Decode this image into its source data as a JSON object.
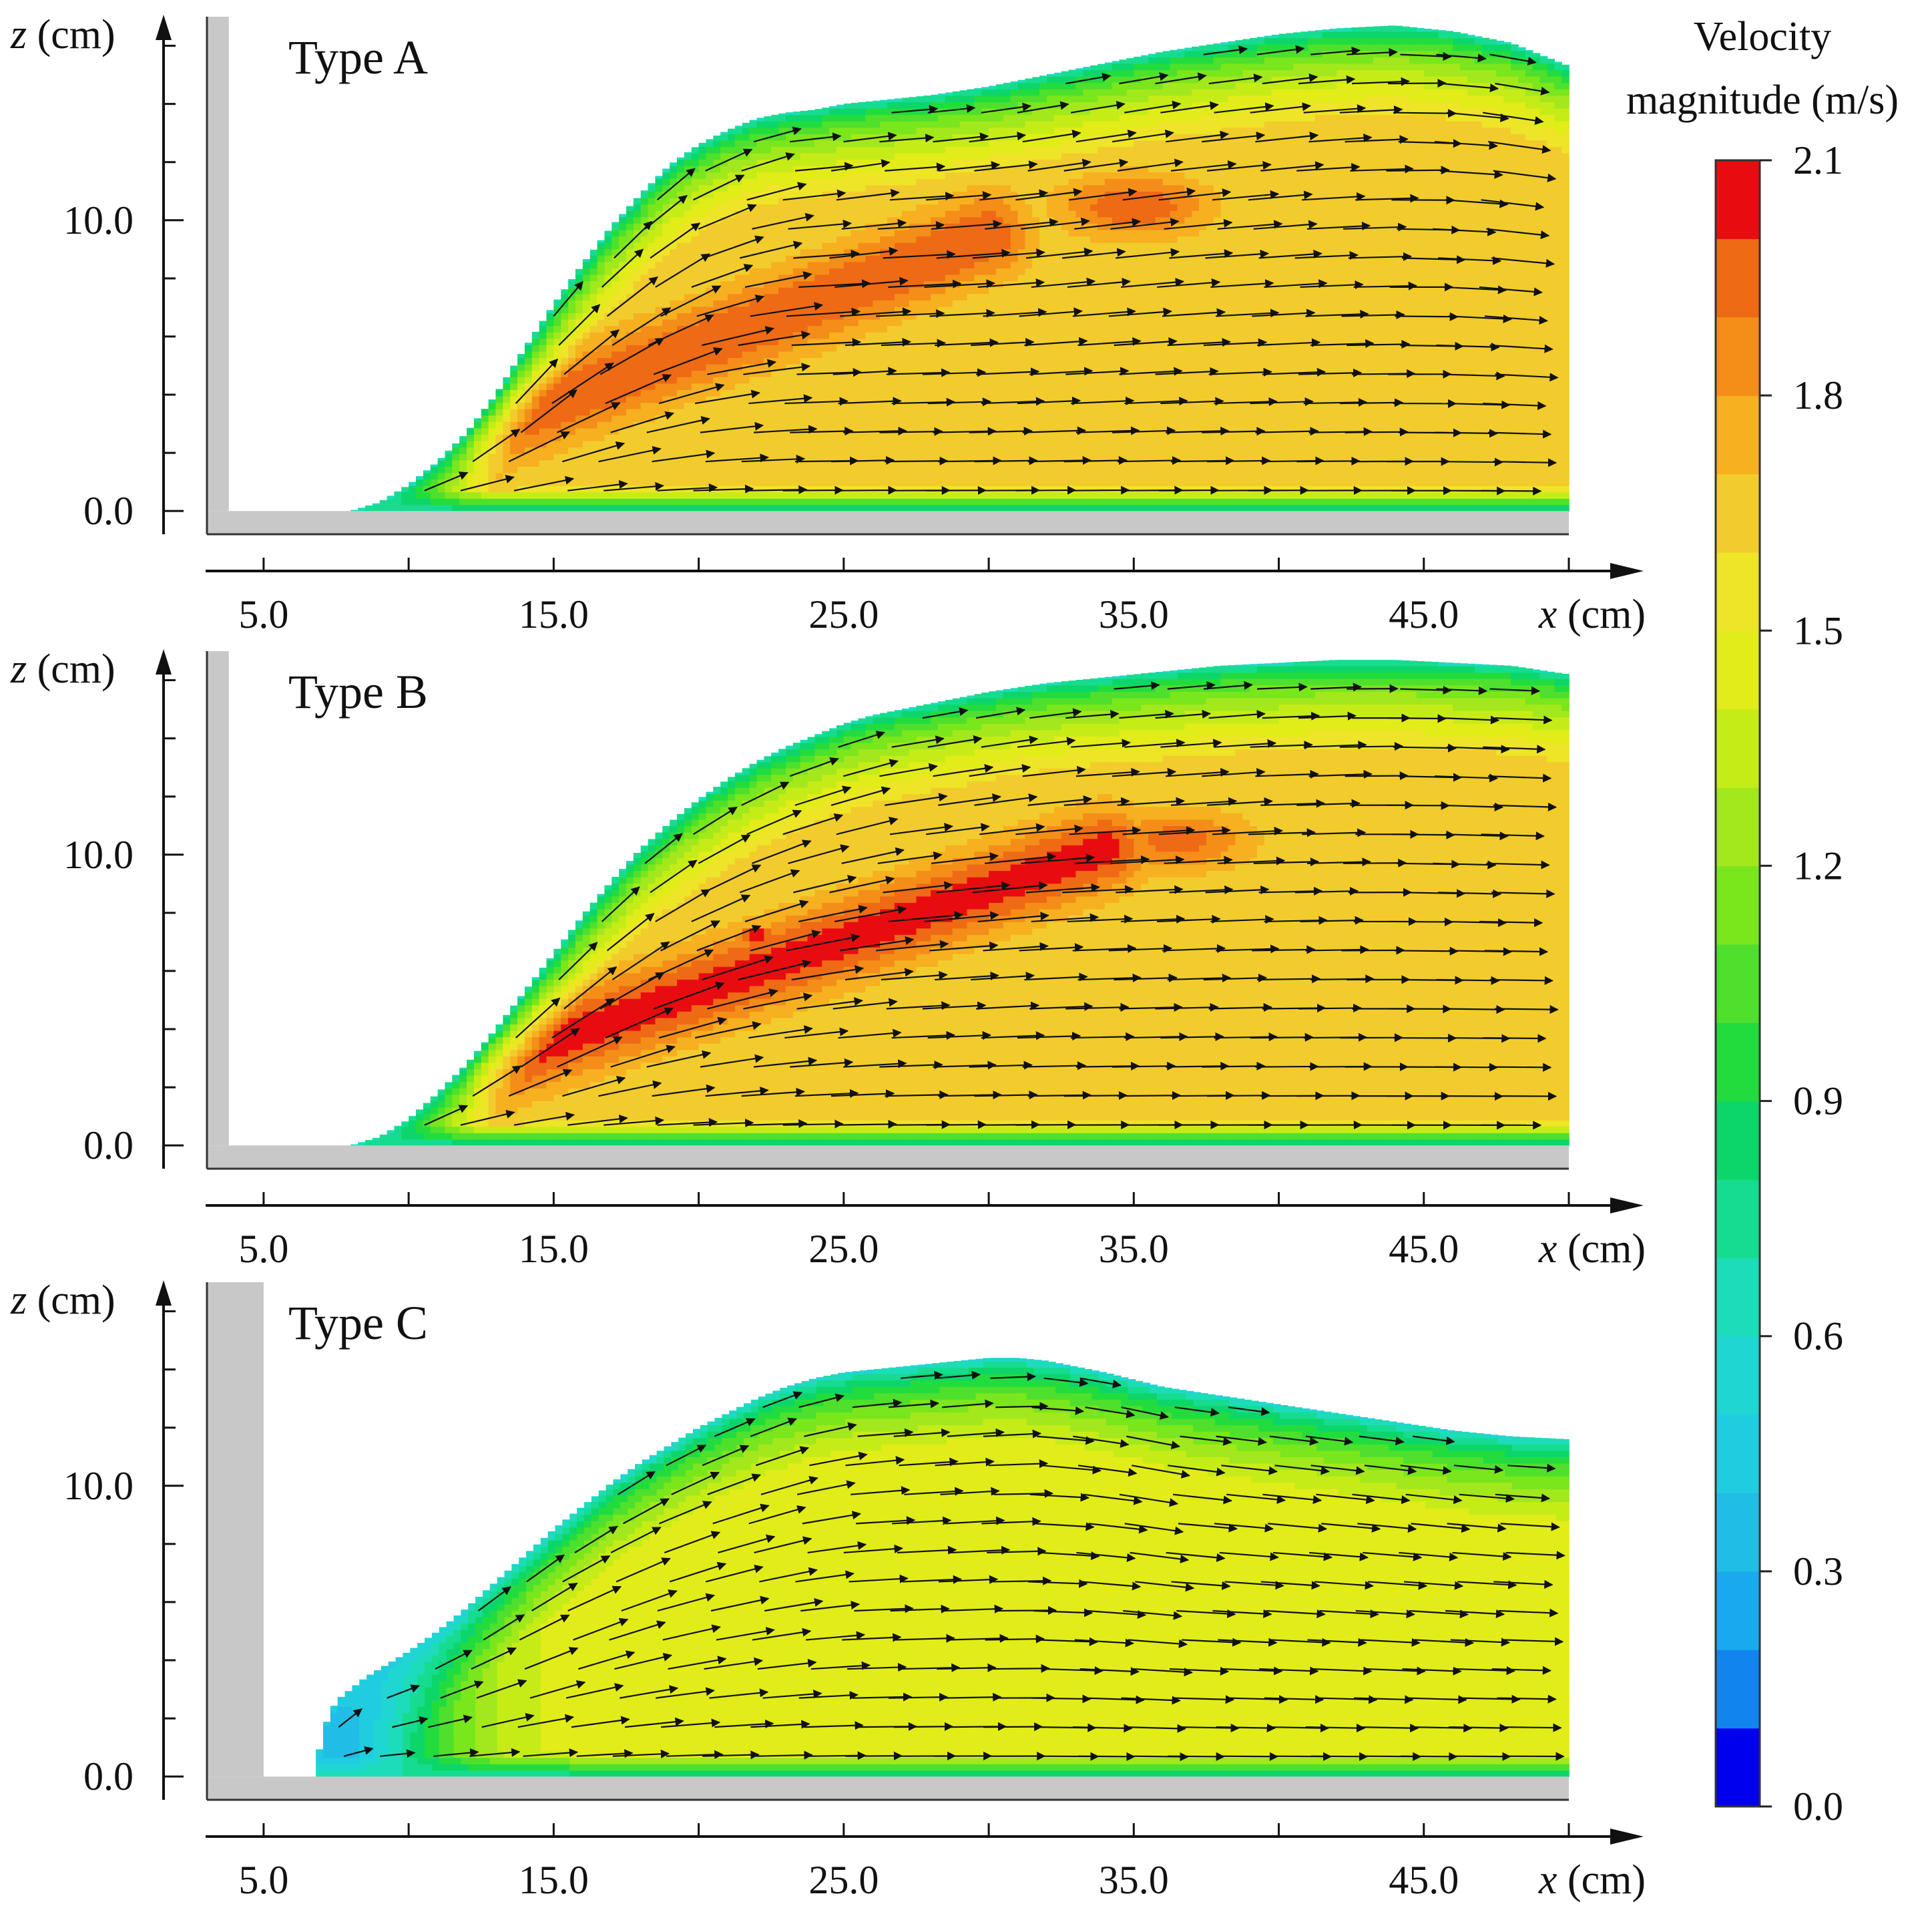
{
  "figure": {
    "colorbar": {
      "title_line1": "Velocity",
      "title_line2": "magnitude (m/s)",
      "vmin": 0.0,
      "vmax": 2.1,
      "levels": 21,
      "tick_values": [
        2.1,
        1.8,
        1.5,
        1.2,
        0.9,
        0.6,
        0.3,
        0.0
      ],
      "tick_labels": [
        "2.1",
        "1.8",
        "1.5",
        "1.2",
        "0.9",
        "0.6",
        "0.3",
        "0.0"
      ],
      "palette": [
        "#0000ee",
        "#1184ee",
        "#19aaee",
        "#20bde6",
        "#20cde0",
        "#1fd6d3",
        "#1ddcb9",
        "#16dc90",
        "#0cd66a",
        "#22dc3e",
        "#4ee02c",
        "#7ae61c",
        "#a2e81c",
        "#c6ec18",
        "#e2ec18",
        "#eee428",
        "#f2cc2c",
        "#f6b020",
        "#f48e18",
        "#ef6a14",
        "#e80c10"
      ]
    }
  },
  "chart_data": [
    {
      "type": "contour",
      "title": "Type A",
      "xlabel": "x (cm)",
      "ylabel": "z (cm)",
      "x_ticks": [
        "5.0",
        "15.0",
        "25.0",
        "35.0",
        "45.0"
      ],
      "y_ticks": [
        "0.0",
        "10.0"
      ],
      "xlim": [
        3.0,
        50.0
      ],
      "zlim": [
        -0.8,
        17.0
      ],
      "wall_width_cm": 0.8,
      "surface_x": [
        8,
        9,
        10,
        11,
        12,
        13,
        14,
        15,
        16,
        17,
        18,
        19,
        20,
        21,
        22,
        23,
        24,
        25,
        26,
        27,
        28,
        30,
        32,
        34,
        36,
        38,
        40,
        42,
        44,
        46,
        48,
        50
      ],
      "surface_z": [
        0,
        0.3,
        0.9,
        1.7,
        2.7,
        4.0,
        5.6,
        7.1,
        8.5,
        9.8,
        10.9,
        11.9,
        12.6,
        13.1,
        13.5,
        13.7,
        13.8,
        14.0,
        14.1,
        14.2,
        14.3,
        14.6,
        15.0,
        15.4,
        15.8,
        16.1,
        16.4,
        16.6,
        16.7,
        16.5,
        16.1,
        15.3
      ],
      "core_jet": {
        "start": [
          12.5,
          2.8
        ],
        "end": [
          30.0,
          9.5
        ],
        "peak_velocity": 2.0
      },
      "secondary_jet": {
        "center": [
          35.0,
          10.5
        ],
        "peak_velocity": 2.0
      },
      "free_surface_velocity": 0.55,
      "bottom_velocity": 0.7,
      "bulk_velocity": 1.6
    },
    {
      "type": "contour",
      "title": "Type B",
      "xlabel": "x (cm)",
      "ylabel": "z (cm)",
      "x_ticks": [
        "5.0",
        "15.0",
        "25.0",
        "35.0",
        "45.0"
      ],
      "y_ticks": [
        "0.0",
        "10.0"
      ],
      "xlim": [
        3.0,
        50.0
      ],
      "zlim": [
        -0.8,
        17.0
      ],
      "wall_width_cm": 0.8,
      "surface_x": [
        8,
        9,
        10,
        11,
        12,
        13,
        14,
        15,
        16,
        17,
        18,
        19,
        20,
        21,
        22,
        23,
        24,
        25,
        26,
        27,
        28,
        30,
        32,
        34,
        36,
        38,
        40,
        42,
        44,
        46,
        48,
        50
      ],
      "surface_z": [
        0,
        0.3,
        0.9,
        1.8,
        2.8,
        4.0,
        5.3,
        6.6,
        7.9,
        9.1,
        10.2,
        11.1,
        11.9,
        12.6,
        13.2,
        13.7,
        14.1,
        14.5,
        14.8,
        15.0,
        15.2,
        15.6,
        15.9,
        16.1,
        16.3,
        16.5,
        16.6,
        16.7,
        16.7,
        16.6,
        16.5,
        16.2
      ],
      "core_jet": {
        "start": [
          13.0,
          2.9
        ],
        "end": [
          34.0,
          10.2
        ],
        "peak_velocity": 2.05
      },
      "secondary_jet": {
        "center": [
          36.5,
          10.5
        ],
        "peak_velocity": 1.95
      },
      "hot_spot": {
        "center": [
          22.0,
          7.2
        ],
        "peak_velocity": 2.1
      },
      "free_surface_velocity": 0.55,
      "bottom_velocity": 0.7,
      "bulk_velocity": 1.6
    },
    {
      "type": "contour",
      "title": "Type C",
      "xlabel": "x (cm)",
      "ylabel": "z (cm)",
      "x_ticks": [
        "5.0",
        "15.0",
        "25.0",
        "35.0",
        "45.0"
      ],
      "y_ticks": [
        "0.0",
        "10.0"
      ],
      "xlim": [
        3.0,
        50.0
      ],
      "zlim": [
        -0.8,
        17.0
      ],
      "wall_width_cm": 2.0,
      "surface_x": [
        6.8,
        7.0,
        7.5,
        8.5,
        10,
        11,
        12,
        13,
        14,
        15,
        16,
        17,
        18,
        19,
        20,
        21,
        22,
        23,
        24,
        25,
        26,
        27,
        28,
        29,
        30,
        31,
        32,
        34,
        36,
        38,
        40,
        42,
        44,
        46,
        48,
        50
      ],
      "surface_z": [
        0,
        1.5,
        2.6,
        3.4,
        4.3,
        5.0,
        5.8,
        6.7,
        7.6,
        8.5,
        9.3,
        10.1,
        10.8,
        11.4,
        12.0,
        12.5,
        13.0,
        13.4,
        13.7,
        13.9,
        14.0,
        14.1,
        14.2,
        14.3,
        14.4,
        14.4,
        14.3,
        13.9,
        13.4,
        13.1,
        12.8,
        12.5,
        12.2,
        11.9,
        11.7,
        11.6
      ],
      "free_surface_velocity": 0.45,
      "bottom_velocity": 0.7,
      "bulk_velocity": 1.45,
      "toe_velocity": 0.2
    }
  ]
}
